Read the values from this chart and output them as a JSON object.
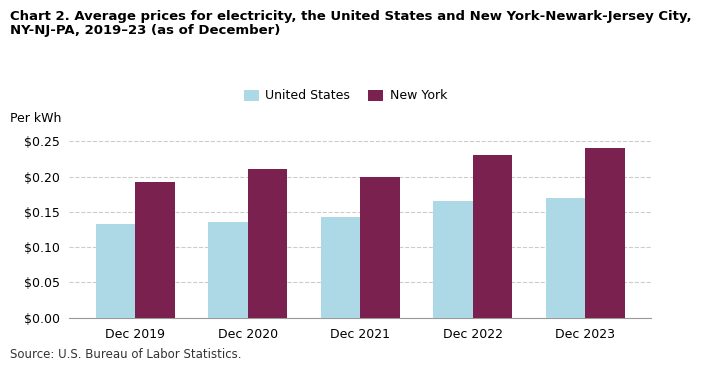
{
  "title_line1": "Chart 2. Average prices for electricity, the United States and New York-Newark-Jersey City,",
  "title_line2": "NY-NJ-PA, 2019–23 (as of December)",
  "ylabel": "Per kWh",
  "source": "Source: U.S. Bureau of Labor Statistics.",
  "categories": [
    "Dec 2019",
    "Dec 2020",
    "Dec 2021",
    "Dec 2022",
    "Dec 2023"
  ],
  "us_values": [
    0.133,
    0.136,
    0.142,
    0.165,
    0.17
  ],
  "ny_values": [
    0.192,
    0.21,
    0.199,
    0.23,
    0.24
  ],
  "us_color": "#ADD8E6",
  "ny_color": "#7B2150",
  "us_label": "United States",
  "ny_label": "New York",
  "ylim": [
    0.0,
    0.265
  ],
  "yticks": [
    0.0,
    0.05,
    0.1,
    0.15,
    0.2,
    0.25
  ],
  "bar_width": 0.35,
  "background_color": "#ffffff",
  "grid_color": "#cccccc",
  "title_fontsize": 9.5,
  "axis_fontsize": 9,
  "legend_fontsize": 9,
  "source_fontsize": 8.5,
  "ylabel_fontsize": 9
}
